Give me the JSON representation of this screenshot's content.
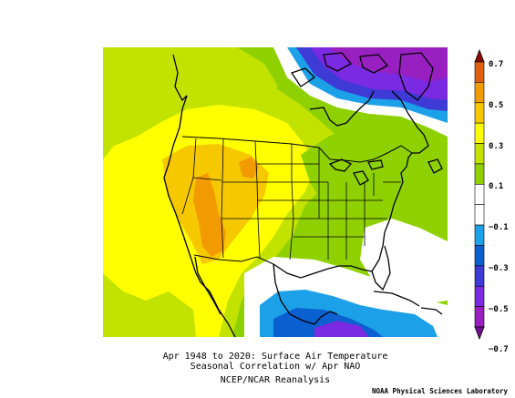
{
  "caption": {
    "line1": "Apr 1948 to 2020: Surface Air Temperature",
    "line2": "Seasonal Correlation w/ Apr NAO",
    "line3": "NCEP/NCAR Reanalysis"
  },
  "credit": "NOAA Physical Sciences Laboratory",
  "colorbar": {
    "labels": [
      "0.7",
      "0.5",
      "0.3",
      "0.1",
      "−0.1",
      "−0.3",
      "−0.5",
      "−0.7"
    ],
    "colors": [
      "#8b0a00",
      "#e06010",
      "#f29b00",
      "#f6c800",
      "#ffff00",
      "#c2e300",
      "#8fd100",
      "#ffffff",
      "#ffffff",
      "#1ca0e8",
      "#0b60d0",
      "#3d3ad6",
      "#7a2ae0",
      "#9820c0",
      "#701090"
    ]
  },
  "palette": {
    "orange": "#f29b00",
    "yellow_orange": "#f6c800",
    "yellow": "#ffff00",
    "yellow_green": "#c2e300",
    "green": "#8fd100",
    "white": "#ffffff",
    "light_blue": "#1ca0e8",
    "blue": "#0b60d0",
    "indigo": "#3d3ad6",
    "purple": "#7a2ae0",
    "dark_purple": "#9820c0"
  }
}
